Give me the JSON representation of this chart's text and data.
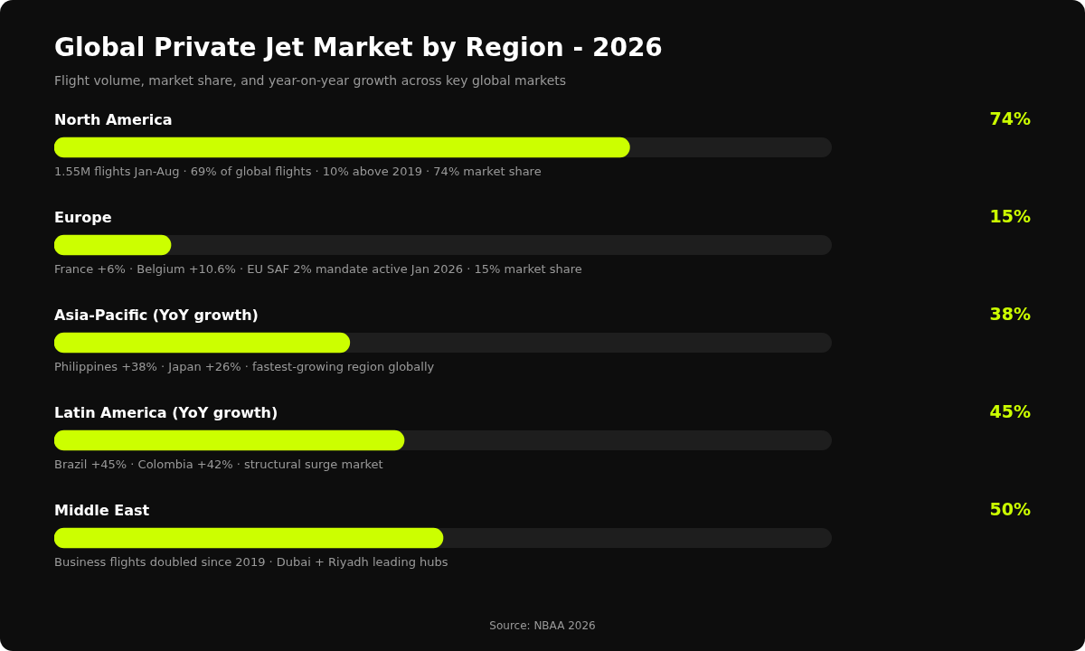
{
  "chart_data": {
    "type": "bar",
    "orientation": "horizontal",
    "title": "Global Private Jet Market by Region - 2026",
    "subtitle": "Flight volume, market share, and year-on-year growth across key global markets",
    "categories": [
      "North America",
      "Europe",
      "Asia-Pacific (YoY growth)",
      "Latin America (YoY growth)",
      "Middle East"
    ],
    "values": [
      74,
      15,
      38,
      45,
      50
    ],
    "value_labels": [
      "74%",
      "15%",
      "38%",
      "45%",
      "50%"
    ],
    "color": "#ccff00",
    "xlim": [
      0,
      100
    ],
    "legend": false,
    "annotations": [
      "1.55M flights Jan-Aug · 69% of global flights · 10% above 2019 · 74% market share",
      "France +6% · Belgium +10.6% · EU SAF 2% mandate active Jan 2026 · 15% market share",
      "Philippines +38% · Japan +26% · fastest-growing region globally",
      "Brazil +45% · Colombia +42% · structural surge market",
      "Business flights doubled since 2019 · Dubai + Riyadh leading hubs",
      "Source: NBAA 2026"
    ]
  }
}
